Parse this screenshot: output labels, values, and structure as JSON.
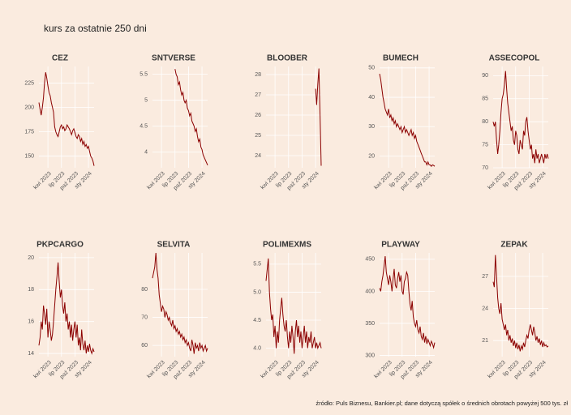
{
  "title": "kurs za ostatnie 250 dni",
  "caption": "źródło: Puls Biznesu, Bankier.pl; dane dotyczą spółek o średnich obrotach powyżej 500 tys. zł",
  "chart_data": [
    {
      "type": "line",
      "title": "CEZ",
      "color": "#8b0000",
      "xlim": [
        0,
        49
      ],
      "xticks": [
        {
          "value": 8,
          "label": "kwi 2023"
        },
        {
          "value": 20,
          "label": "lip 2023"
        },
        {
          "value": 32,
          "label": "paź 2023"
        },
        {
          "value": 44,
          "label": "sty 2024"
        }
      ],
      "ylim": [
        138,
        242
      ],
      "yticks": [
        150,
        175,
        200,
        225
      ],
      "values": [
        205,
        198,
        192,
        200,
        210,
        225,
        236,
        230,
        222,
        215,
        212,
        205,
        200,
        195,
        180,
        175,
        172,
        170,
        175,
        180,
        182,
        178,
        180,
        176,
        178,
        182,
        180,
        178,
        175,
        172,
        176,
        178,
        174,
        170,
        168,
        172,
        170,
        165,
        168,
        162,
        165,
        160,
        162,
        158,
        160,
        155,
        150,
        148,
        145,
        140
      ]
    },
    {
      "type": "line",
      "title": "SNTVERSE",
      "color": "#8b0000",
      "xlim": [
        0,
        49
      ],
      "xticks": [
        {
          "value": 8,
          "label": "kwi 2023"
        },
        {
          "value": 20,
          "label": "lip 2023"
        },
        {
          "value": 32,
          "label": "paź 2023"
        },
        {
          "value": 44,
          "label": "sty 2024"
        }
      ],
      "ylim": [
        3.7,
        5.65
      ],
      "yticks": [
        4.0,
        4.5,
        5.0,
        5.5
      ],
      "values": [
        null,
        null,
        null,
        null,
        null,
        null,
        null,
        null,
        null,
        null,
        null,
        null,
        null,
        null,
        null,
        null,
        null,
        null,
        null,
        null,
        5.6,
        5.5,
        5.45,
        5.3,
        5.35,
        5.2,
        5.1,
        5.15,
        5.0,
        4.95,
        5.0,
        4.85,
        4.8,
        4.7,
        4.75,
        4.6,
        4.55,
        4.5,
        4.4,
        4.45,
        4.3,
        4.2,
        4.25,
        4.1,
        4.05,
        3.95,
        3.9,
        3.85,
        3.8,
        3.75
      ]
    },
    {
      "type": "line",
      "title": "BLOOBER",
      "color": "#8b0000",
      "xlim": [
        0,
        49
      ],
      "xticks": [
        {
          "value": 8,
          "label": "kwi 2023"
        },
        {
          "value": 20,
          "label": "lip 2023"
        },
        {
          "value": 32,
          "label": "paź 2023"
        },
        {
          "value": 44,
          "label": "sty 2024"
        }
      ],
      "ylim": [
        23.4,
        28.4
      ],
      "yticks": [
        24,
        25,
        26,
        27,
        28
      ],
      "values": [
        null,
        null,
        null,
        null,
        null,
        null,
        null,
        null,
        null,
        null,
        null,
        null,
        null,
        null,
        null,
        null,
        null,
        null,
        null,
        null,
        null,
        null,
        null,
        null,
        null,
        null,
        null,
        null,
        null,
        null,
        null,
        null,
        null,
        null,
        null,
        null,
        null,
        null,
        null,
        null,
        null,
        null,
        null,
        null,
        27.3,
        26.5,
        27.5,
        28.3,
        26,
        23.5
      ]
    },
    {
      "type": "line",
      "title": "BUMECH",
      "color": "#8b0000",
      "xlim": [
        0,
        49
      ],
      "xticks": [
        {
          "value": 8,
          "label": "kwi 2023"
        },
        {
          "value": 20,
          "label": "lip 2023"
        },
        {
          "value": 32,
          "label": "paź 2023"
        },
        {
          "value": 44,
          "label": "sty 2024"
        }
      ],
      "ylim": [
        16,
        50.5
      ],
      "yticks": [
        20,
        30,
        40,
        50
      ],
      "values": [
        48,
        46,
        43,
        40,
        38,
        36,
        35,
        34,
        36,
        33,
        34,
        32,
        33,
        31,
        32,
        30,
        31,
        30,
        29,
        30,
        28,
        29,
        30,
        28,
        29,
        28,
        27,
        28,
        29,
        27,
        28,
        26,
        27,
        25,
        24,
        23,
        22,
        21,
        20,
        19,
        18,
        18,
        17,
        18,
        17,
        17,
        16.5,
        17,
        16.8,
        16.5
      ]
    },
    {
      "type": "line",
      "title": "ASSECOPOL",
      "color": "#8b0000",
      "xlim": [
        0,
        49
      ],
      "xticks": [
        {
          "value": 8,
          "label": "kwi 2023"
        },
        {
          "value": 20,
          "label": "lip 2023"
        },
        {
          "value": 32,
          "label": "paź 2023"
        },
        {
          "value": 44,
          "label": "sty 2024"
        }
      ],
      "ylim": [
        70,
        92
      ],
      "yticks": [
        70,
        75,
        80,
        85,
        90
      ],
      "values": [
        80,
        79,
        80,
        76,
        73,
        75,
        78,
        82,
        85,
        86,
        88,
        91,
        87,
        84,
        82,
        80,
        78,
        79,
        76,
        75,
        78,
        77,
        74,
        73,
        76,
        75,
        74,
        78,
        77,
        80,
        81,
        78,
        76,
        74,
        75,
        72,
        73,
        71,
        74,
        72,
        73,
        71,
        72,
        73,
        72,
        71,
        73,
        72,
        73,
        72
      ]
    },
    {
      "type": "line",
      "title": "PKPCARGO",
      "color": "#8b0000",
      "xlim": [
        0,
        49
      ],
      "xticks": [
        {
          "value": 8,
          "label": "kwi 2023"
        },
        {
          "value": 20,
          "label": "lip 2023"
        },
        {
          "value": 32,
          "label": "paź 2023"
        },
        {
          "value": 44,
          "label": "sty 2024"
        }
      ],
      "ylim": [
        13.8,
        20.3
      ],
      "yticks": [
        14,
        16,
        18,
        20
      ],
      "values": [
        14.5,
        15,
        16,
        15.5,
        17,
        16.5,
        15.8,
        16.8,
        15,
        16,
        15.5,
        14.8,
        15.2,
        16,
        17,
        18,
        18.8,
        19.7,
        18.5,
        17.5,
        18,
        17,
        16.5,
        17.2,
        16,
        16.5,
        15.5,
        16,
        15,
        15.8,
        14.8,
        15.5,
        16,
        15,
        15.8,
        14.5,
        15,
        14.2,
        15.5,
        14.6,
        14.2,
        14.8,
        14,
        14.5,
        14.1,
        14.6,
        14.2,
        14,
        14.3,
        14.1
      ]
    },
    {
      "type": "line",
      "title": "SELVITA",
      "color": "#8b0000",
      "xlim": [
        0,
        49
      ],
      "xticks": [
        {
          "value": 8,
          "label": "kwi 2023"
        },
        {
          "value": 20,
          "label": "lip 2023"
        },
        {
          "value": 32,
          "label": "paź 2023"
        },
        {
          "value": 44,
          "label": "sty 2024"
        }
      ],
      "ylim": [
        56,
        93
      ],
      "yticks": [
        60,
        70,
        80
      ],
      "values": [
        84,
        86,
        88,
        93,
        87,
        84,
        78,
        75,
        72,
        74,
        73,
        70,
        72,
        71,
        69,
        70,
        68,
        67,
        69,
        66,
        67,
        65,
        66,
        64,
        65,
        63,
        64,
        62,
        63,
        61,
        62,
        60,
        61,
        59,
        58,
        62,
        60,
        57,
        61,
        59,
        60,
        58,
        61,
        59,
        60,
        58,
        59,
        60,
        58,
        59
      ]
    },
    {
      "type": "line",
      "title": "POLIMEXMS",
      "color": "#8b0000",
      "xlim": [
        0,
        49
      ],
      "xticks": [
        {
          "value": 8,
          "label": "kwi 2023"
        },
        {
          "value": 20,
          "label": "lip 2023"
        },
        {
          "value": 32,
          "label": "paź 2023"
        },
        {
          "value": 44,
          "label": "sty 2024"
        }
      ],
      "ylim": [
        3.85,
        5.7
      ],
      "yticks": [
        {
          "value": 4,
          "label": "4.0"
        },
        4.5,
        {
          "value": 5,
          "label": "5.0"
        },
        5.5
      ],
      "values": [
        5.2,
        5.4,
        5.6,
        5.0,
        4.7,
        4.5,
        4.6,
        4.2,
        4.4,
        4.0,
        4.3,
        4.1,
        4.5,
        4.7,
        4.9,
        4.6,
        4.4,
        4.3,
        4.5,
        4.2,
        4.0,
        4.3,
        4.1,
        4.4,
        4.2,
        3.9,
        4.3,
        4.5,
        4.2,
        4.4,
        4.1,
        4.3,
        4.0,
        4.2,
        4.4,
        4.1,
        4.3,
        4.0,
        4.2,
        4.1,
        4.3,
        4.0,
        4.1,
        4.2,
        4.0,
        4.1,
        4.0,
        4.05,
        4.1,
        4.0
      ]
    },
    {
      "type": "line",
      "title": "PLAYWAY",
      "color": "#8b0000",
      "xlim": [
        0,
        49
      ],
      "xticks": [
        {
          "value": 8,
          "label": "kwi 2023"
        },
        {
          "value": 20,
          "label": "lip 2023"
        },
        {
          "value": 32,
          "label": "paź 2023"
        },
        {
          "value": 44,
          "label": "sty 2024"
        }
      ],
      "ylim": [
        298,
        460
      ],
      "yticks": [
        300,
        350,
        400,
        450
      ],
      "values": [
        405,
        400,
        415,
        425,
        440,
        455,
        430,
        420,
        410,
        425,
        415,
        400,
        420,
        435,
        410,
        405,
        420,
        430,
        415,
        425,
        400,
        395,
        415,
        420,
        430,
        425,
        400,
        380,
        370,
        385,
        360,
        350,
        345,
        355,
        340,
        335,
        345,
        330,
        325,
        335,
        320,
        330,
        318,
        325,
        320,
        315,
        322,
        318,
        312,
        320
      ]
    },
    {
      "type": "line",
      "title": "ZEPAK",
      "color": "#8b0000",
      "xlim": [
        0,
        49
      ],
      "xticks": [
        {
          "value": 8,
          "label": "kwi 2023"
        },
        {
          "value": 20,
          "label": "lip 2023"
        },
        {
          "value": 32,
          "label": "paź 2023"
        },
        {
          "value": 44,
          "label": "sty 2024"
        }
      ],
      "ylim": [
        19.5,
        29.2
      ],
      "yticks": [
        21,
        24,
        27
      ],
      "values": [
        26.5,
        26,
        29,
        27,
        25,
        24,
        23.5,
        24.5,
        23,
        22.5,
        22,
        22.5,
        21.5,
        22,
        21,
        21.5,
        20.8,
        21.2,
        20.5,
        21,
        20.3,
        20.8,
        20.2,
        20.6,
        20,
        20.5,
        20.2,
        20.8,
        20.4,
        21,
        21.5,
        21.2,
        22,
        22.5,
        22,
        21.5,
        22.3,
        21.8,
        21,
        21.4,
        20.8,
        21.2,
        20.6,
        21,
        20.4,
        20.8,
        20.5,
        20.6,
        20.4,
        20.5
      ]
    }
  ]
}
